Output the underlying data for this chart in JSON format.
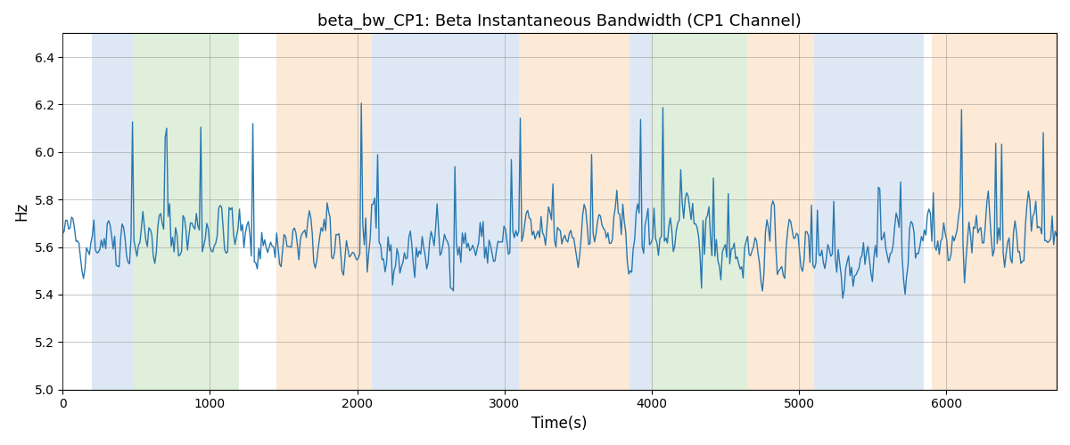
{
  "title": "beta_bw_CP1: Beta Instantaneous Bandwidth (CP1 Channel)",
  "xlabel": "Time(s)",
  "ylabel": "Hz",
  "ylim": [
    5.0,
    6.5
  ],
  "xlim": [
    0,
    6750
  ],
  "line_color": "#2878b0",
  "line_width": 1.0,
  "background_color": "#ffffff",
  "grid": true,
  "seed": 42,
  "n_points": 670,
  "mean": 5.62,
  "std": 0.13,
  "bands": [
    {
      "start": 200,
      "end": 480,
      "color": "#aec6e8",
      "alpha": 0.4
    },
    {
      "start": 480,
      "end": 1200,
      "color": "#b2d8a8",
      "alpha": 0.4
    },
    {
      "start": 1450,
      "end": 2100,
      "color": "#f8c99a",
      "alpha": 0.4
    },
    {
      "start": 2100,
      "end": 3100,
      "color": "#aec6e8",
      "alpha": 0.4
    },
    {
      "start": 3100,
      "end": 3850,
      "color": "#f8c99a",
      "alpha": 0.4
    },
    {
      "start": 3850,
      "end": 4000,
      "color": "#aec6e8",
      "alpha": 0.4
    },
    {
      "start": 4000,
      "end": 4650,
      "color": "#b2d8a8",
      "alpha": 0.4
    },
    {
      "start": 4650,
      "end": 5100,
      "color": "#f8c99a",
      "alpha": 0.4
    },
    {
      "start": 5100,
      "end": 5850,
      "color": "#aec6e8",
      "alpha": 0.4
    },
    {
      "start": 5900,
      "end": 6750,
      "color": "#f8c99a",
      "alpha": 0.4
    }
  ],
  "title_fontsize": 13,
  "label_fontsize": 12,
  "tick_fontsize": 10
}
